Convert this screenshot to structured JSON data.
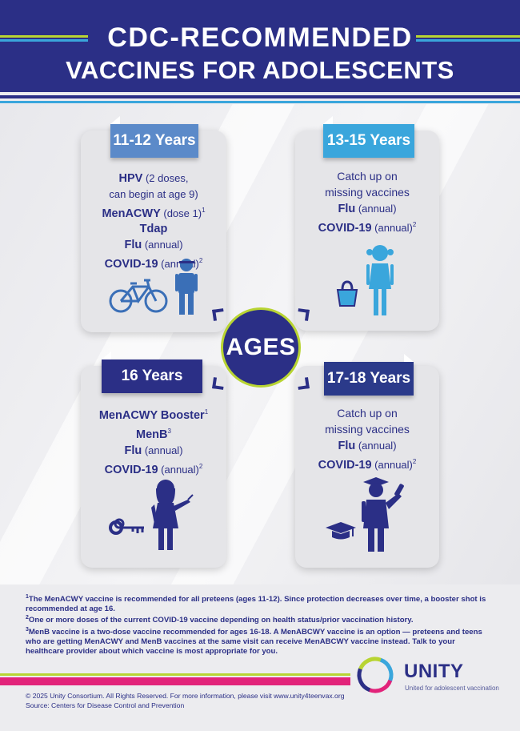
{
  "header": {
    "title_line1": "CDC-RECOMMENDED",
    "title_line2": "VACCINES FOR ADOLESCENTS"
  },
  "colors": {
    "navy": "#2b2f86",
    "steel_blue": "#5b8ac9",
    "sky_blue": "#3aa6dc",
    "lime": "#b8d432",
    "magenta": "#e2237a"
  },
  "center_badge": "AGES",
  "groups": [
    {
      "age": "11-12 Years",
      "icons": [
        "bicycle-icon",
        "boy-icon"
      ],
      "lines": [
        {
          "bold": "HPV",
          "normal": " (2 doses,"
        },
        {
          "bold": "",
          "normal": "can begin at age 9)"
        },
        {
          "bold": "MenACWY",
          "normal": " (dose 1)",
          "sup": "1"
        },
        {
          "bold": "Tdap",
          "normal": ""
        },
        {
          "bold": "Flu",
          "normal": " (annual)"
        },
        {
          "bold": "COVID-19",
          "normal": " (annual)",
          "sup": "2"
        }
      ]
    },
    {
      "age": "13-15 Years",
      "icons": [
        "handbag-icon",
        "girl-icon"
      ],
      "lines": [
        {
          "bold": "",
          "normal": "Catch up on"
        },
        {
          "bold": "",
          "normal": "missing vaccines"
        },
        {
          "bold": "Flu",
          "normal": " (annual)"
        },
        {
          "bold": "COVID-19",
          "normal": " (annual)",
          "sup": "2"
        }
      ]
    },
    {
      "age": "16 Years",
      "icons": [
        "car-keys-icon",
        "teen-girl-icon"
      ],
      "lines": [
        {
          "bold": "MenACWY Booster",
          "normal": "",
          "sup": "1"
        },
        {
          "bold": "MenB",
          "normal": "",
          "sup": "3"
        },
        {
          "bold": "Flu",
          "normal": " (annual)"
        },
        {
          "bold": "COVID-19",
          "normal": " (annual)",
          "sup": "2"
        }
      ]
    },
    {
      "age": "17-18 Years",
      "icons": [
        "graduation-cap-icon",
        "graduate-icon"
      ],
      "lines": [
        {
          "bold": "",
          "normal": "Catch up on"
        },
        {
          "bold": "",
          "normal": "missing vaccines"
        },
        {
          "bold": "Flu",
          "normal": " (annual)"
        },
        {
          "bold": "COVID-19",
          "normal": " (annual)",
          "sup": "2"
        }
      ]
    }
  ],
  "footnotes": [
    {
      "num": "1",
      "text": "The MenACWY vaccine is recommended for all preteens (ages 11-12). Since protection decreases over time, a booster shot is recommended at age 16."
    },
    {
      "num": "2",
      "text": "One or more doses of the current COVID-19 vaccine depending on health status/prior vaccination history."
    },
    {
      "num": "3",
      "text": "MenB vaccine is a two-dose vaccine recommended for ages 16-18. A MenABCWY vaccine is an option — preteens and teens who are getting MenACWY and MenB vaccines at the same visit can receive MenABCWY vaccine instead. Talk to your healthcare provider about which vaccine is most appropriate for you."
    }
  ],
  "footer": {
    "copyright": "© 2025 Unity Consortium. All Rights Reserved. For more information, please visit www.unity4teenvax.org",
    "source": "Source: Centers for Disease Control and Prevention",
    "logo_word": "UNITY",
    "logo_tagline": "United for adolescent vaccination"
  }
}
